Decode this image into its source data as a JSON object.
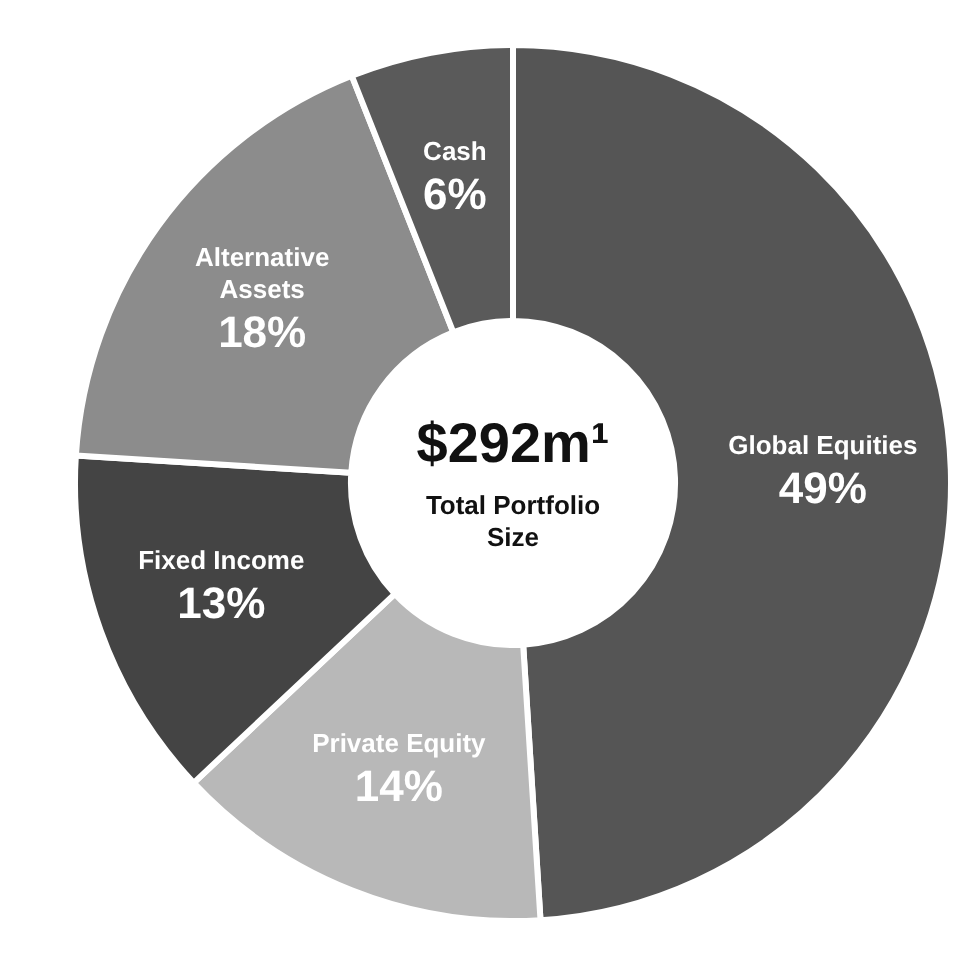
{
  "chart_data": {
    "type": "donut",
    "categories": [
      "Global Equities",
      "Private Equity",
      "Fixed Income",
      "Alternative Assets",
      "Cash"
    ],
    "values": [
      49,
      14,
      13,
      18,
      6
    ],
    "colors": [
      "#555555",
      "#b8b8b8",
      "#444444",
      "#8c8c8c",
      "#5a5a5a"
    ],
    "value_labels": [
      "49%",
      "14%",
      "13%",
      "18%",
      "6%"
    ],
    "annotations": [
      "$292m¹",
      "Total Portfolio Size"
    ],
    "legend": false
  }
}
